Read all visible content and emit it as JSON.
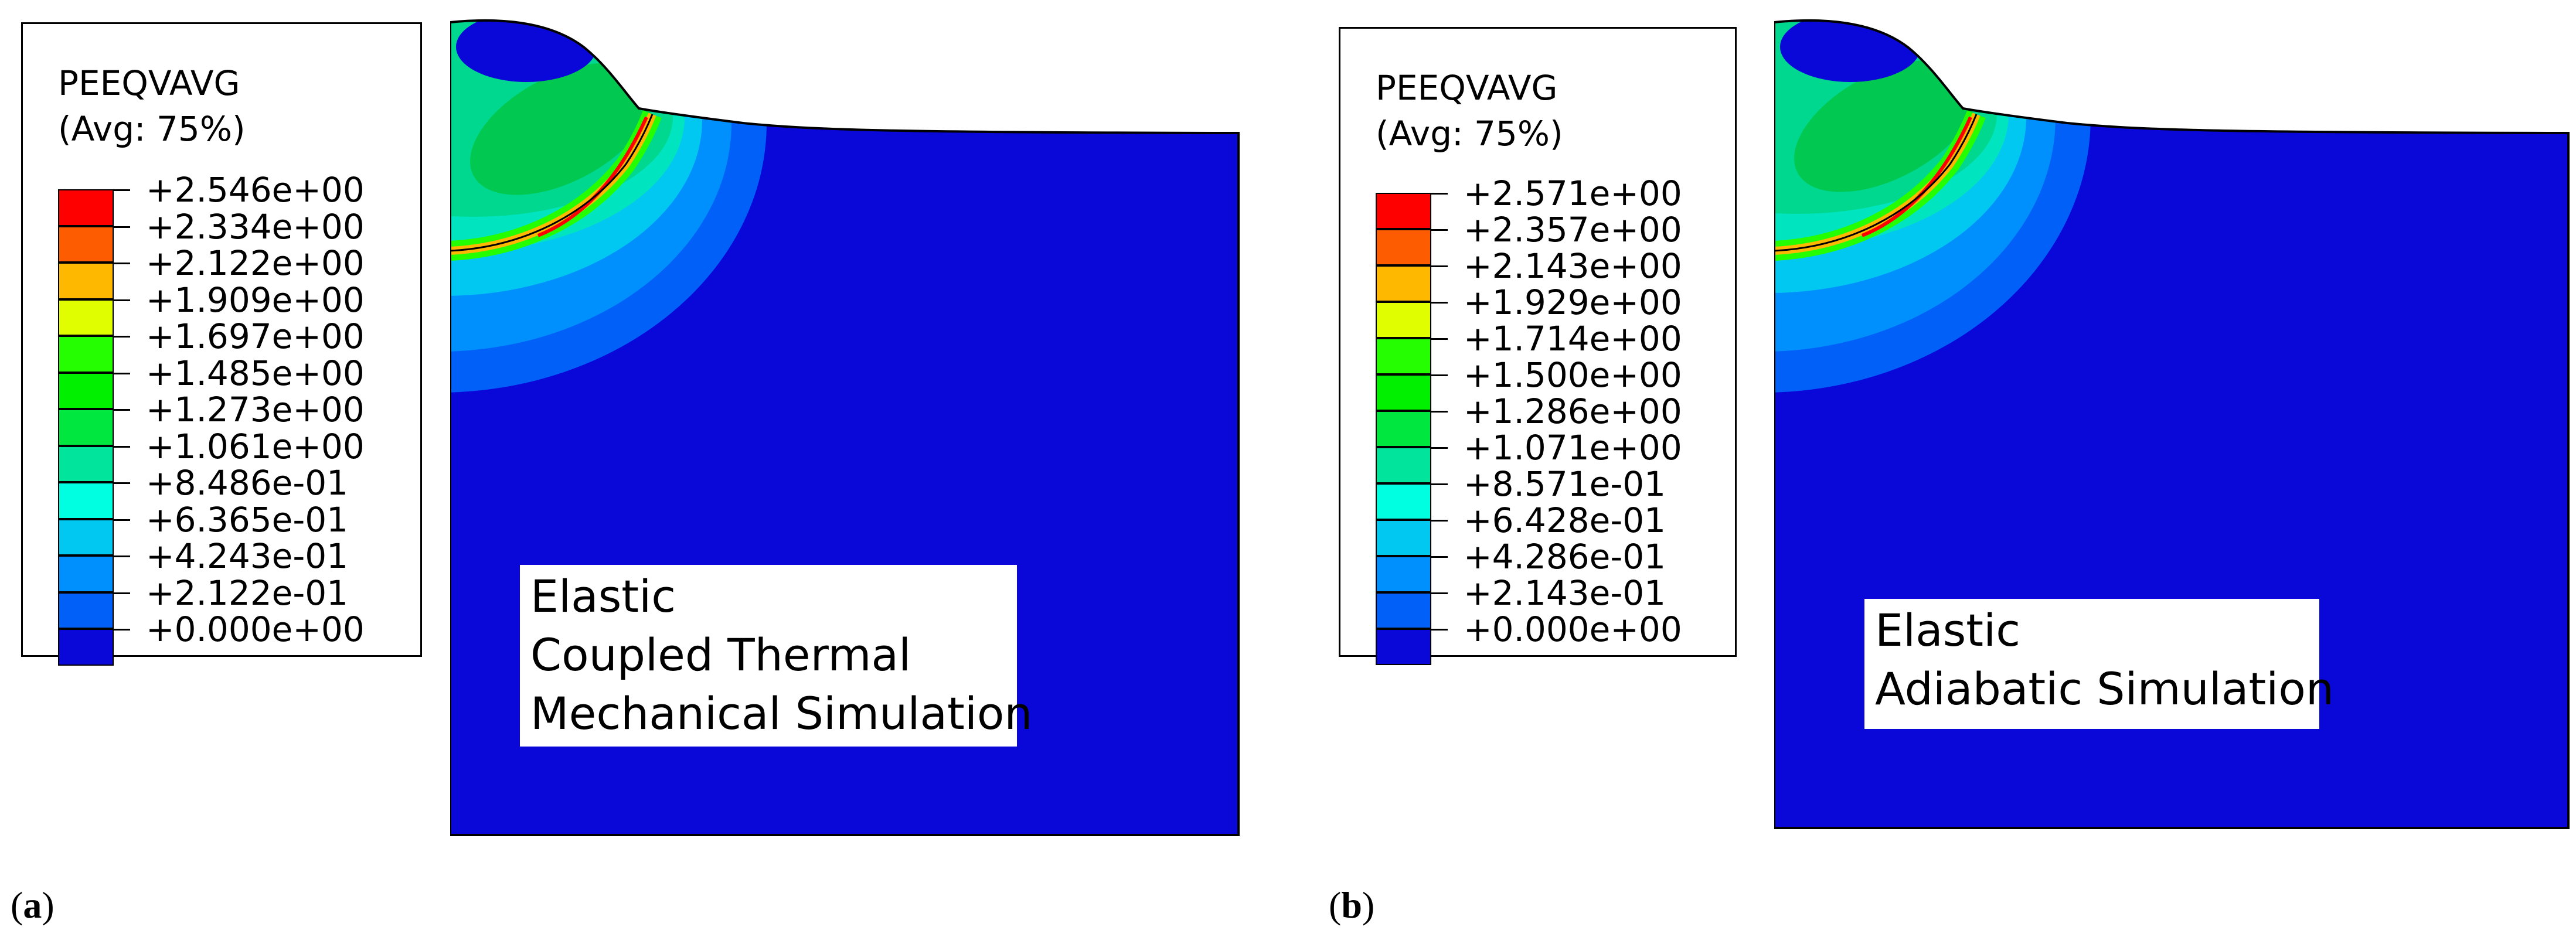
{
  "panels": [
    {
      "legend": {
        "title": "PEEQVAVG",
        "avg": "(Avg: 75%)",
        "values": [
          "+2.546e+00",
          "+2.334e+00",
          "+2.122e+00",
          "+1.909e+00",
          "+1.697e+00",
          "+1.485e+00",
          "+1.273e+00",
          "+1.061e+00",
          "+8.486e-01",
          "+6.365e-01",
          "+4.243e-01",
          "+2.122e-01",
          "+0.000e+00"
        ]
      },
      "label_lines": [
        "Elastic",
        "Coupled Thermal",
        "Mechanical Simulation"
      ],
      "caption_letter": "a"
    },
    {
      "legend": {
        "title": "PEEQVAVG",
        "avg": "(Avg: 75%)",
        "values": [
          "+2.571e+00",
          "+2.357e+00",
          "+2.143e+00",
          "+1.929e+00",
          "+1.714e+00",
          "+1.500e+00",
          "+1.286e+00",
          "+1.071e+00",
          "+8.571e-01",
          "+6.428e-01",
          "+4.286e-01",
          "+2.143e-01",
          "+0.000e+00"
        ]
      },
      "label_lines": [
        "Elastic",
        "Adiabatic Simulation"
      ],
      "caption_letter": "b"
    }
  ],
  "colors": {
    "band_colors": [
      "#fe0000",
      "#fe5c00",
      "#feb800",
      "#e0fe00",
      "#24fe00",
      "#00f000",
      "#00e840",
      "#00e49c",
      "#00fee0",
      "#00c8f0",
      "#0090fe",
      "#0060f8",
      "#0a08d8"
    ],
    "domain_blue": "#0a08d8"
  }
}
